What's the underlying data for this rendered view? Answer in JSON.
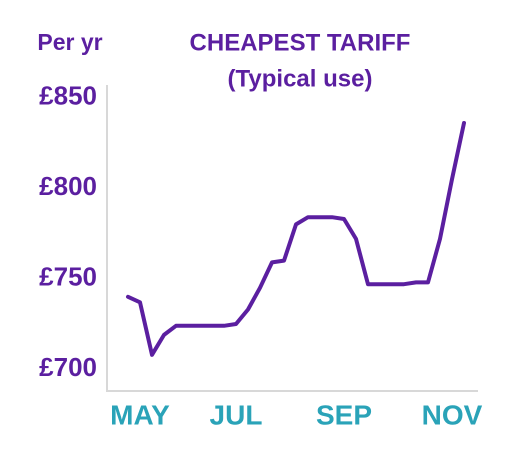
{
  "chart_data": {
    "type": "line",
    "title": "CHEAPEST TARIFF",
    "subtitle": "(Typical use)",
    "y_label": "Per yr",
    "categories": [
      null,
      "MAY",
      null,
      null,
      null,
      null,
      null,
      null,
      null,
      "JUL",
      null,
      null,
      null,
      null,
      null,
      null,
      null,
      null,
      "SEP",
      null,
      null,
      null,
      null,
      null,
      null,
      null,
      null,
      "NOV",
      null
    ],
    "series": [
      {
        "name": "Cheapest tariff",
        "color": "#5b1fa0",
        "values": [
          740,
          737,
          708,
          719,
          724,
          724,
          724,
          724,
          724,
          725,
          733,
          745,
          759,
          760,
          780,
          784,
          784,
          784,
          783,
          772,
          747,
          747,
          747,
          747,
          748,
          748,
          772,
          805,
          836
        ]
      }
    ],
    "ylim": [
      688,
      857
    ],
    "yticks": [
      {
        "value": 700,
        "label": "£700"
      },
      {
        "value": 750,
        "label": "£750"
      },
      {
        "value": 800,
        "label": "£800"
      },
      {
        "value": 850,
        "label": "£850"
      }
    ],
    "grid": false
  }
}
